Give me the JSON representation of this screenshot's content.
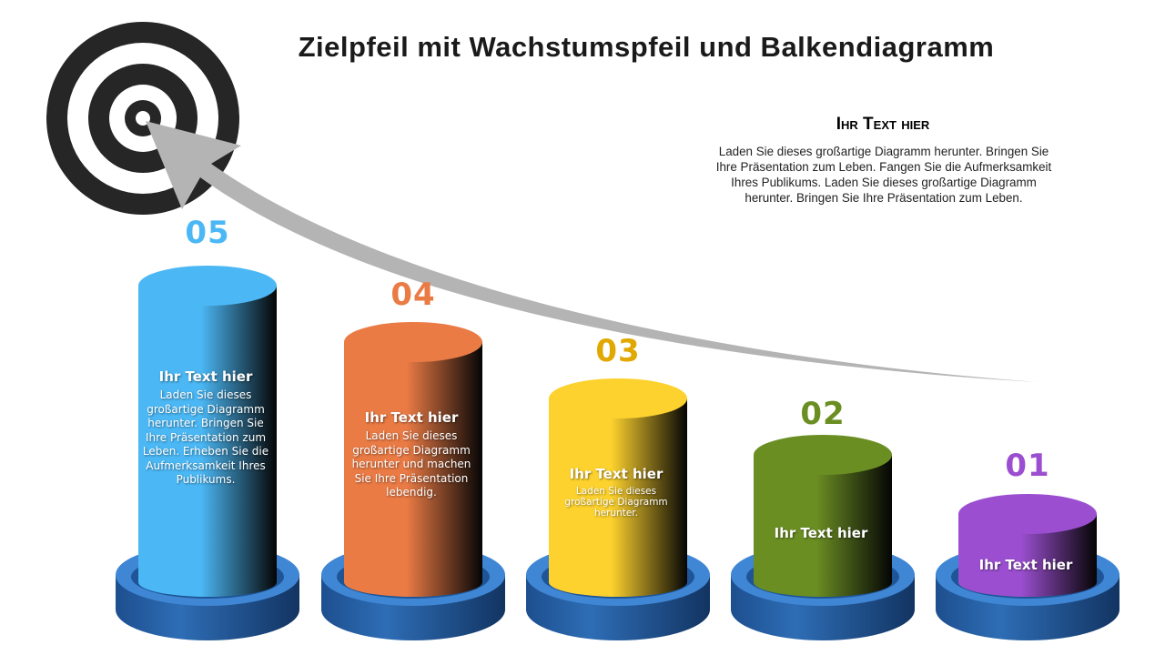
{
  "title": "Zielpfeil mit Wachstumspfeil und Balkendiagramm",
  "side": {
    "heading": "Ihr Text hier",
    "text": "Laden Sie dieses großartige Diagramm herunter. Bringen Sie Ihre Präsentation zum Leben. Fangen Sie die Aufmerksamkeit Ihres Publikums.  Laden Sie dieses großartige Diagramm herunter. Bringen Sie Ihre Präsentation zum Leben."
  },
  "icons": {
    "target": "target-icon",
    "arrow": "growth-arrow-icon"
  },
  "bars": [
    {
      "number": "05",
      "color": "#4bb8f5",
      "heading": "Ihr Text hier",
      "text": "Laden Sie dieses großartige Diagramm herunter. Bringen Sie Ihre Präsentation zum Leben. Erheben Sie die Aufmerksamkeit Ihres Publikums."
    },
    {
      "number": "04",
      "color": "#ea7b45",
      "heading": "Ihr Text hier",
      "text": "Laden Sie dieses großartige Diagramm herunter und machen Sie Ihre Präsentation lebendig."
    },
    {
      "number": "03",
      "color": "#fdd22e",
      "numcolor": "#e0a800",
      "heading": "Ihr Text hier",
      "text": "Laden Sie dieses großartige Diagramm herunter."
    },
    {
      "number": "02",
      "color": "#6b8e23",
      "heading": "Ihr Text hier",
      "text": ""
    },
    {
      "number": "01",
      "color": "#9b4fd0",
      "heading": "Ihr Text hier",
      "text": ""
    }
  ],
  "base_color": "#2e6db5"
}
